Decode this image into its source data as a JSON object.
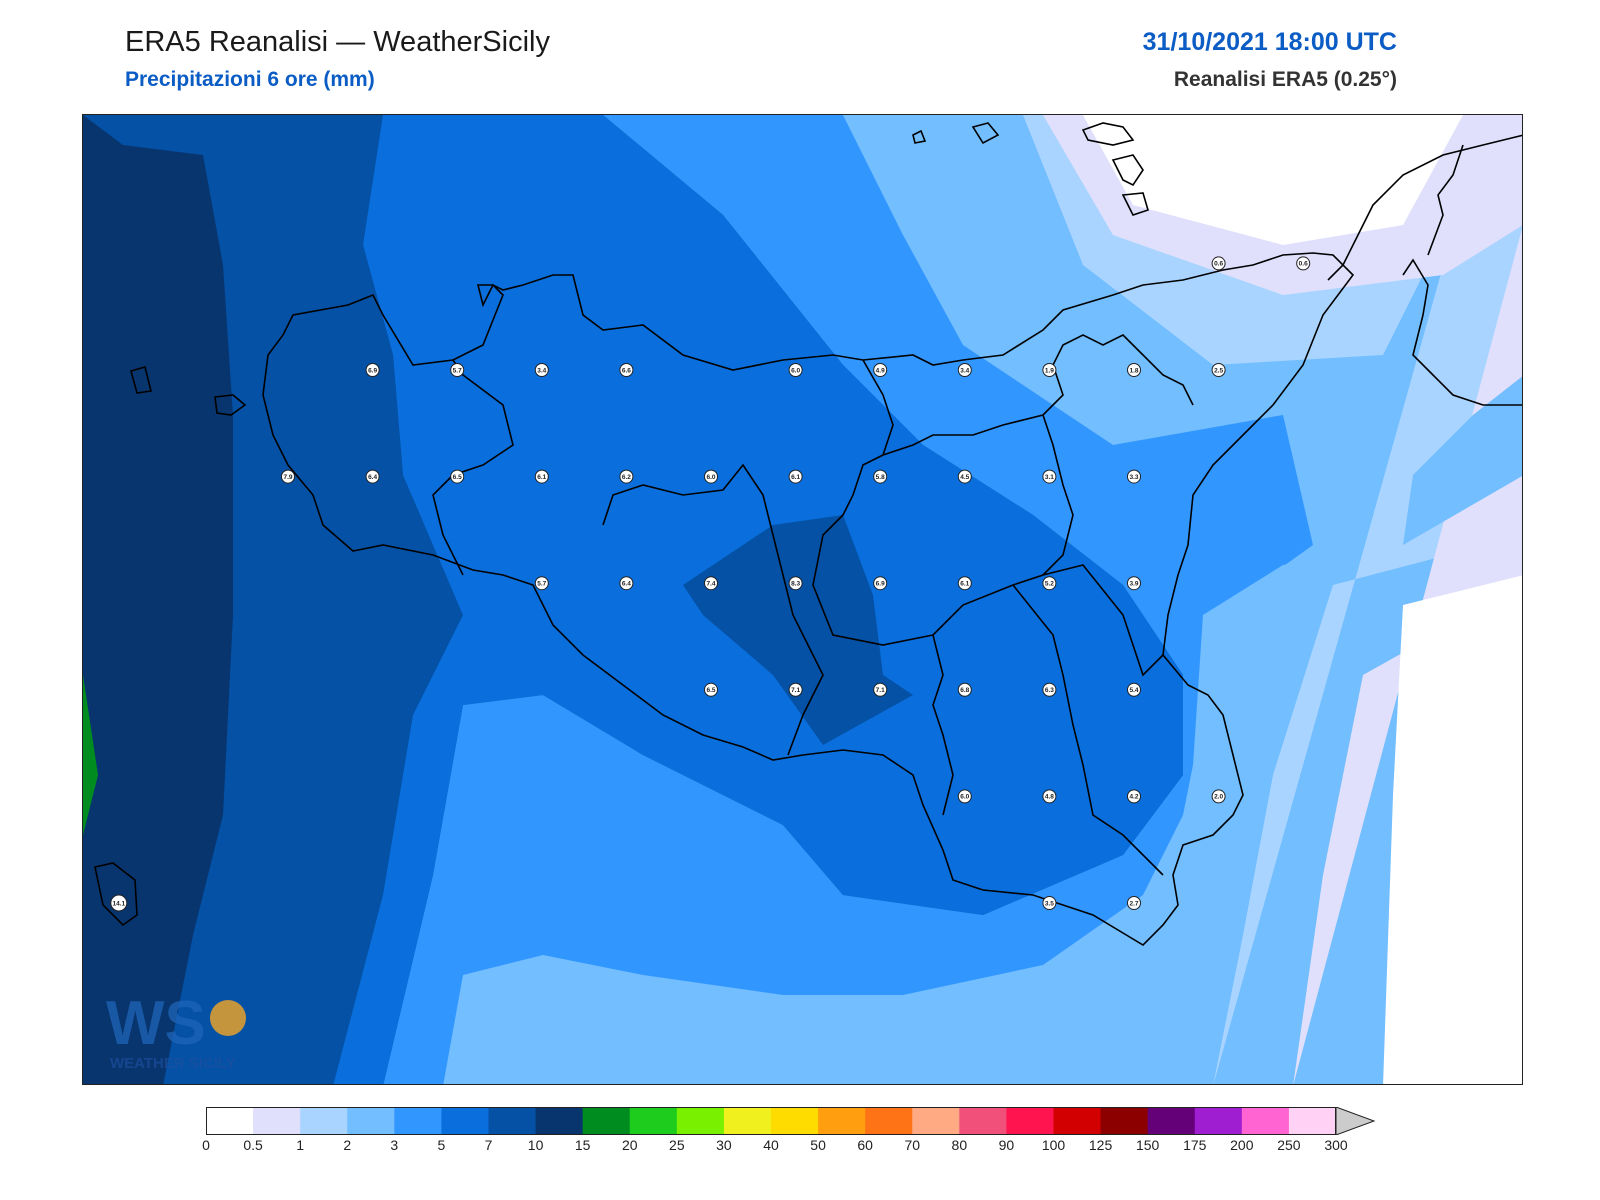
{
  "header": {
    "title": "ERA5 Reanalisi — WeatherSicily",
    "subtitle": "Precipitazioni 6 ore (mm)",
    "datetime": "31/10/2021 18:00 UTC",
    "source": "Reanalisi ERA5 (0.25°)"
  },
  "logo": {
    "letters": "WS",
    "text": "WEATHER SICILY"
  },
  "legend": {
    "thresholds": [
      "0",
      "0.5",
      "1",
      "2",
      "3",
      "5",
      "7",
      "10",
      "15",
      "20",
      "25",
      "30",
      "40",
      "50",
      "60",
      "70",
      "80",
      "90",
      "100",
      "125",
      "150",
      "175",
      "200",
      "250",
      "300"
    ],
    "colors": [
      "#ffffff",
      "#e0e0fc",
      "#a9d4ff",
      "#72beff",
      "#3296ff",
      "#0a6fdc",
      "#0451a6",
      "#08356e",
      "#008c1e",
      "#1ecc1e",
      "#78f000",
      "#f0f01e",
      "#ffdc00",
      "#ff9f0f",
      "#ff7317",
      "#ffaa82",
      "#f0507a",
      "#ff1450",
      "#d20000",
      "#8c0000",
      "#640078",
      "#a01ed2",
      "#ff64d2",
      "#ffd2f5"
    ]
  },
  "stations": [
    {
      "v": "6.9",
      "lon": 12.45,
      "lat": 38.25
    },
    {
      "v": "5.7",
      "lon": 12.75,
      "lat": 38.25
    },
    {
      "v": "3.4",
      "lon": 13.05,
      "lat": 38.25
    },
    {
      "v": "6.6",
      "lon": 13.35,
      "lat": 38.25
    },
    {
      "v": "6.0",
      "lon": 13.95,
      "lat": 38.25
    },
    {
      "v": "4.9",
      "lon": 14.25,
      "lat": 38.25
    },
    {
      "v": "3.4",
      "lon": 14.55,
      "lat": 38.25
    },
    {
      "v": "1.9",
      "lon": 14.85,
      "lat": 38.25
    },
    {
      "v": "1.8",
      "lon": 15.15,
      "lat": 38.25
    },
    {
      "v": "2.5",
      "lon": 15.45,
      "lat": 38.25
    },
    {
      "v": "7.9",
      "lon": 12.15,
      "lat": 37.95
    },
    {
      "v": "6.4",
      "lon": 12.45,
      "lat": 37.95
    },
    {
      "v": "6.5",
      "lon": 12.75,
      "lat": 37.95
    },
    {
      "v": "6.1",
      "lon": 13.05,
      "lat": 37.95
    },
    {
      "v": "6.2",
      "lon": 13.35,
      "lat": 37.95
    },
    {
      "v": "6.0",
      "lon": 13.65,
      "lat": 37.95
    },
    {
      "v": "6.1",
      "lon": 13.95,
      "lat": 37.95
    },
    {
      "v": "5.8",
      "lon": 14.25,
      "lat": 37.95
    },
    {
      "v": "4.5",
      "lon": 14.55,
      "lat": 37.95
    },
    {
      "v": "3.1",
      "lon": 14.85,
      "lat": 37.95
    },
    {
      "v": "3.3",
      "lon": 15.15,
      "lat": 37.95
    },
    {
      "v": "5.7",
      "lon": 13.05,
      "lat": 37.65
    },
    {
      "v": "6.4",
      "lon": 13.35,
      "lat": 37.65
    },
    {
      "v": "7.4",
      "lon": 13.65,
      "lat": 37.65
    },
    {
      "v": "8.3",
      "lon": 13.95,
      "lat": 37.65
    },
    {
      "v": "6.9",
      "lon": 14.25,
      "lat": 37.65
    },
    {
      "v": "6.1",
      "lon": 14.55,
      "lat": 37.65
    },
    {
      "v": "5.2",
      "lon": 14.85,
      "lat": 37.65
    },
    {
      "v": "3.9",
      "lon": 15.15,
      "lat": 37.65
    },
    {
      "v": "6.5",
      "lon": 13.65,
      "lat": 37.35
    },
    {
      "v": "7.1",
      "lon": 13.95,
      "lat": 37.35
    },
    {
      "v": "7.1",
      "lon": 14.25,
      "lat": 37.35
    },
    {
      "v": "6.8",
      "lon": 14.55,
      "lat": 37.35
    },
    {
      "v": "6.3",
      "lon": 14.85,
      "lat": 37.35
    },
    {
      "v": "5.4",
      "lon": 15.15,
      "lat": 37.35
    },
    {
      "v": "6.0",
      "lon": 14.55,
      "lat": 37.05
    },
    {
      "v": "4.8",
      "lon": 14.85,
      "lat": 37.05
    },
    {
      "v": "4.2",
      "lon": 15.15,
      "lat": 37.05
    },
    {
      "v": "2.0",
      "lon": 15.45,
      "lat": 37.05
    },
    {
      "v": "3.5",
      "lon": 14.85,
      "lat": 36.75
    },
    {
      "v": "2.7",
      "lon": 15.15,
      "lat": 36.75
    },
    {
      "v": "14.1",
      "lon": 11.55,
      "lat": 36.75
    },
    {
      "v": "0.6",
      "lon": 15.45,
      "lat": 38.55
    },
    {
      "v": "0.6",
      "lon": 15.75,
      "lat": 38.55
    }
  ]
}
